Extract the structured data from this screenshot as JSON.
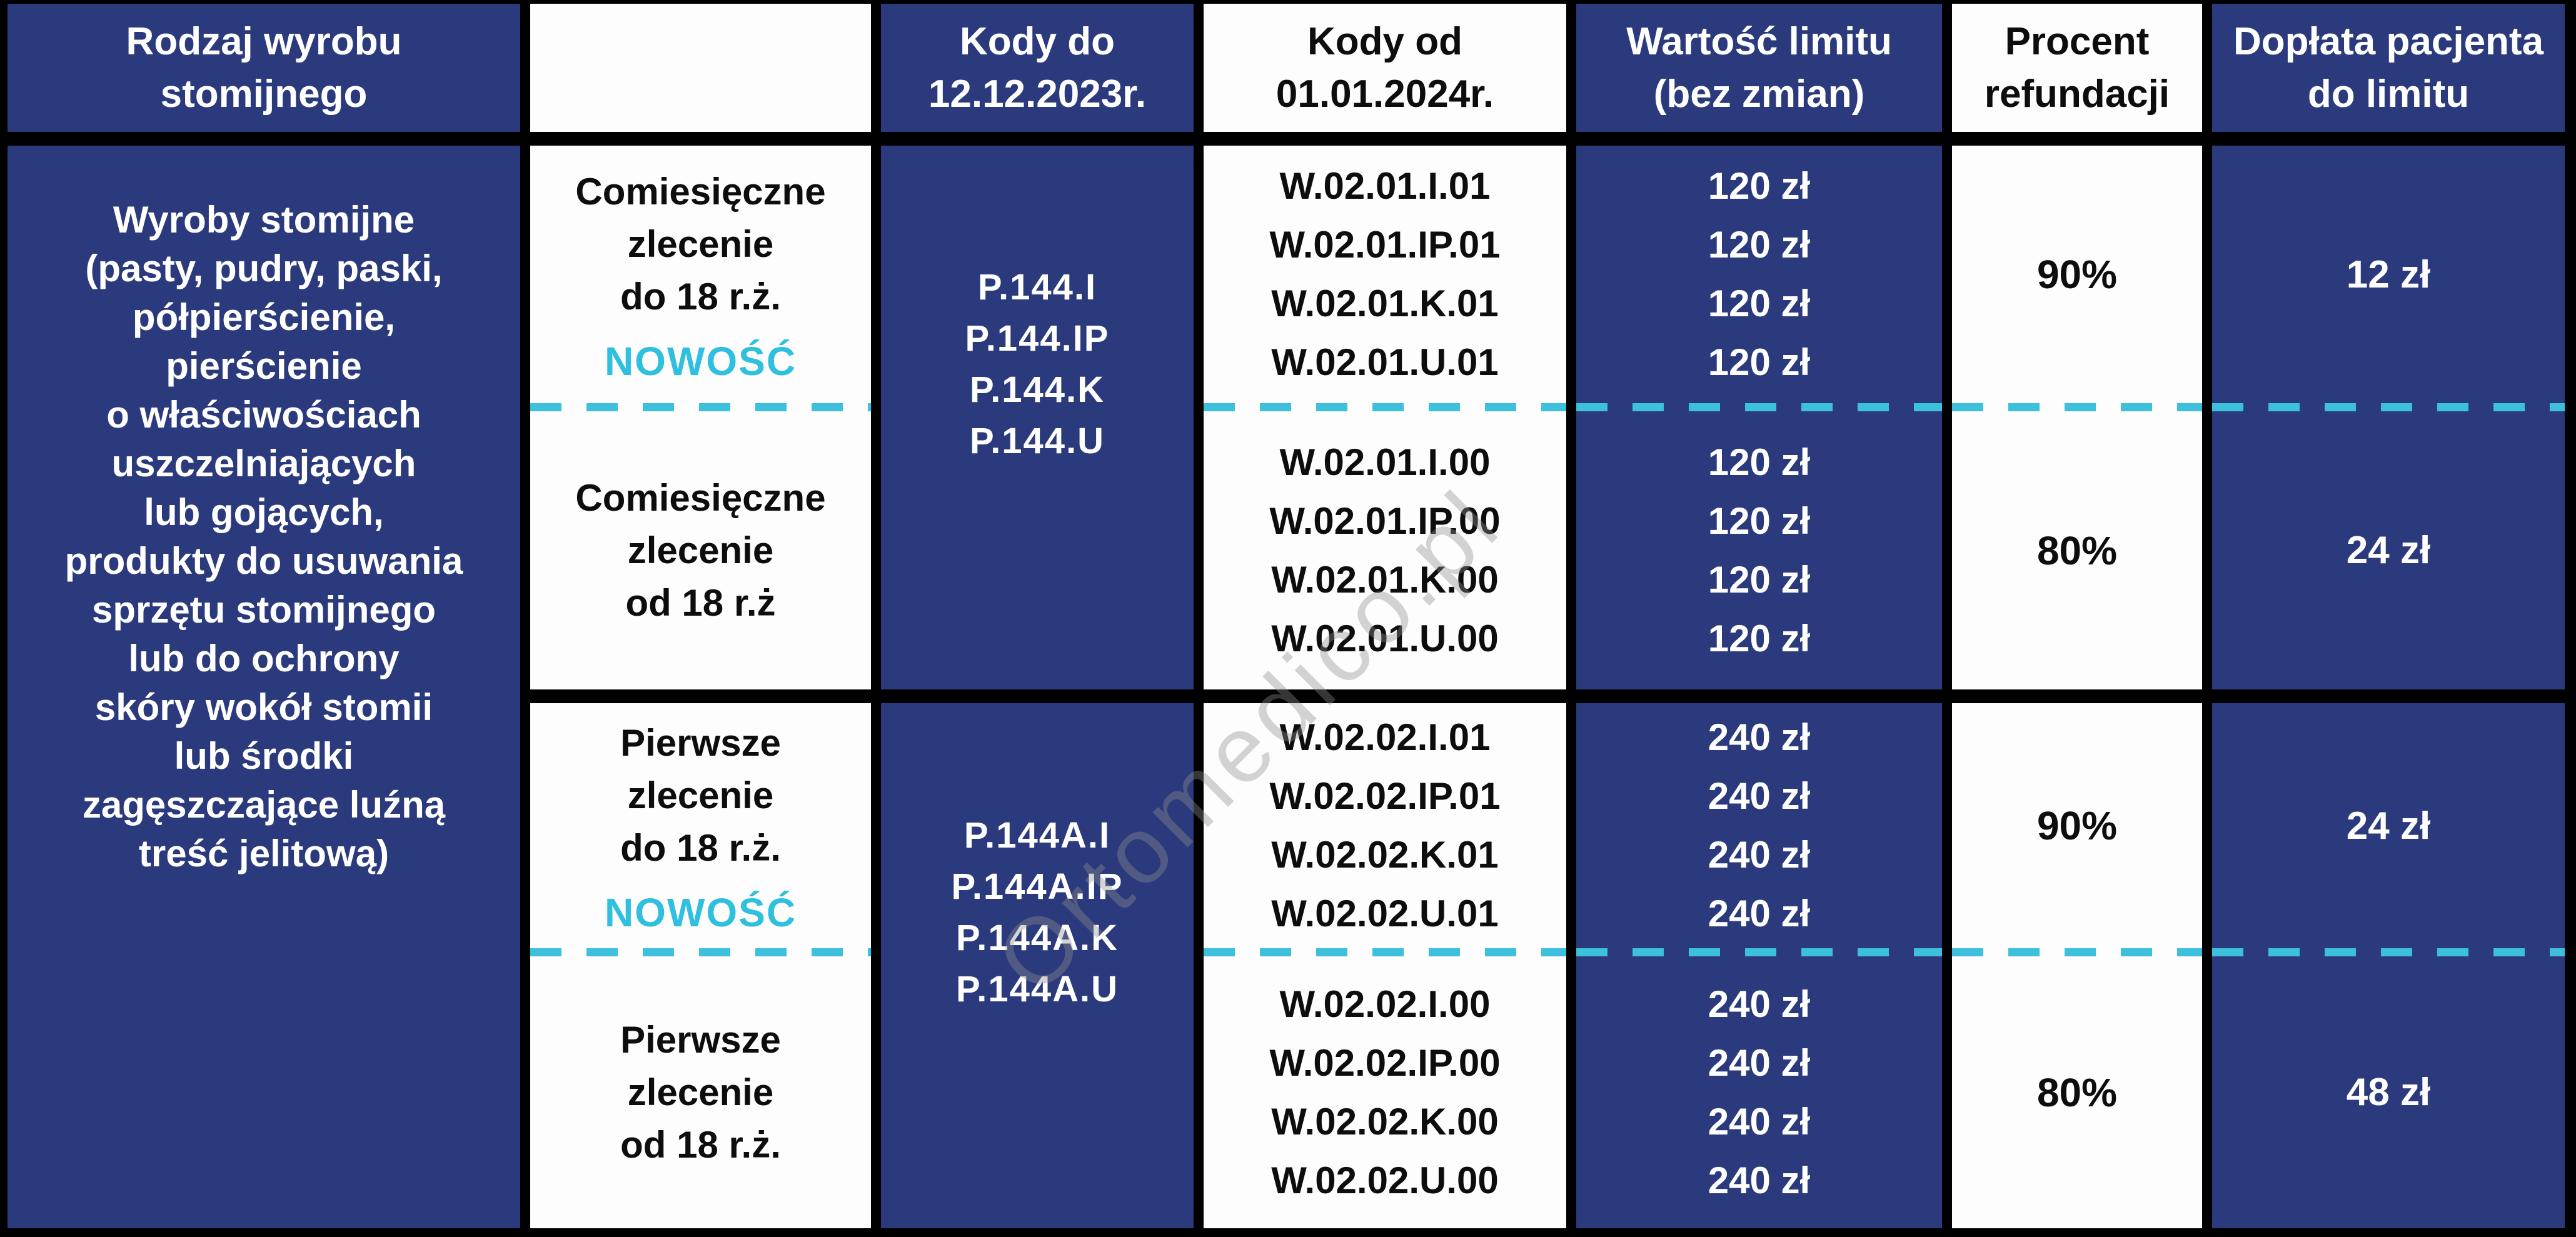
{
  "header": {
    "product": "Rodzaj wyrobu\nstomijnego",
    "empty": "",
    "codes_old": "Kody do\n12.12.2023r.",
    "codes_new": "Kody od\n01.01.2024r.",
    "limit": "Wartość limitu\n(bez zmian)",
    "refund": "Procent\nrefundacji",
    "copay": "Dopłata pacjenta\ndo limitu"
  },
  "product_group": {
    "name": "Wyroby stomijne\n(pasty, pudry, paski,\npółpierścienie,\npierścienie\no właściwościach\nuszczelniających\nlub gojących,\nprodukty do usuwania\nsprzętu stomijnego\nlub do ochrony\nskóry wokół stomii\nlub środki\nzagęszczające luźną\ntreść jelitową)"
  },
  "sections": [
    {
      "codes_old": [
        "P.144.I",
        "P.144.IP",
        "P.144.K",
        "P.144.U"
      ],
      "rows": [
        {
          "order_type": "Comiesięczne\nzlecenie\ndo 18 r.ż.",
          "badge": "NOWOŚĆ",
          "codes_new": [
            "W.02.01.I.01",
            "W.02.01.IP.01",
            "W.02.01.K.01",
            "W.02.01.U.01"
          ],
          "limit": [
            "120 zł",
            "120 zł",
            "120 zł",
            "120 zł"
          ],
          "refund": "90%",
          "copay": "12 zł"
        },
        {
          "order_type": "Comiesięczne\nzlecenie\nod 18 r.ż",
          "codes_new": [
            "W.02.01.I.00",
            "W.02.01.IP.00",
            "W.02.01.K.00",
            "W.02.01.U.00"
          ],
          "limit": [
            "120 zł",
            "120 zł",
            "120 zł",
            "120 zł"
          ],
          "refund": "80%",
          "copay": "24 zł"
        }
      ]
    },
    {
      "codes_old": [
        "P.144A.I",
        "P.144A.IP",
        "P.144A.K",
        "P.144A.U"
      ],
      "rows": [
        {
          "order_type": "Pierwsze\nzlecenie\ndo 18 r.ż.",
          "badge": "NOWOŚĆ",
          "codes_new": [
            "W.02.02.I.01",
            "W.02.02.IP.01",
            "W.02.02.K.01",
            "W.02.02.U.01"
          ],
          "limit": [
            "240 zł",
            "240 zł",
            "240 zł",
            "240 zł"
          ],
          "refund": "90%",
          "copay": "24 zł"
        },
        {
          "order_type": "Pierwsze\nzlecenie\nod 18 r.ż.",
          "codes_new": [
            "W.02.02.I.00",
            "W.02.02.IP.00",
            "W.02.02.K.00",
            "W.02.02.U.00"
          ],
          "limit": [
            "240 zł",
            "240 zł",
            "240 zł",
            "240 zł"
          ],
          "refund": "80%",
          "copay": "48 zł"
        }
      ]
    }
  ],
  "watermark": {
    "text": "Ortomedico.pl"
  },
  "colors": {
    "navy": "#2b3a7c",
    "cyan": "#3cc0dc",
    "badge_cyan": "#2fbfdf",
    "border": "#000000"
  }
}
